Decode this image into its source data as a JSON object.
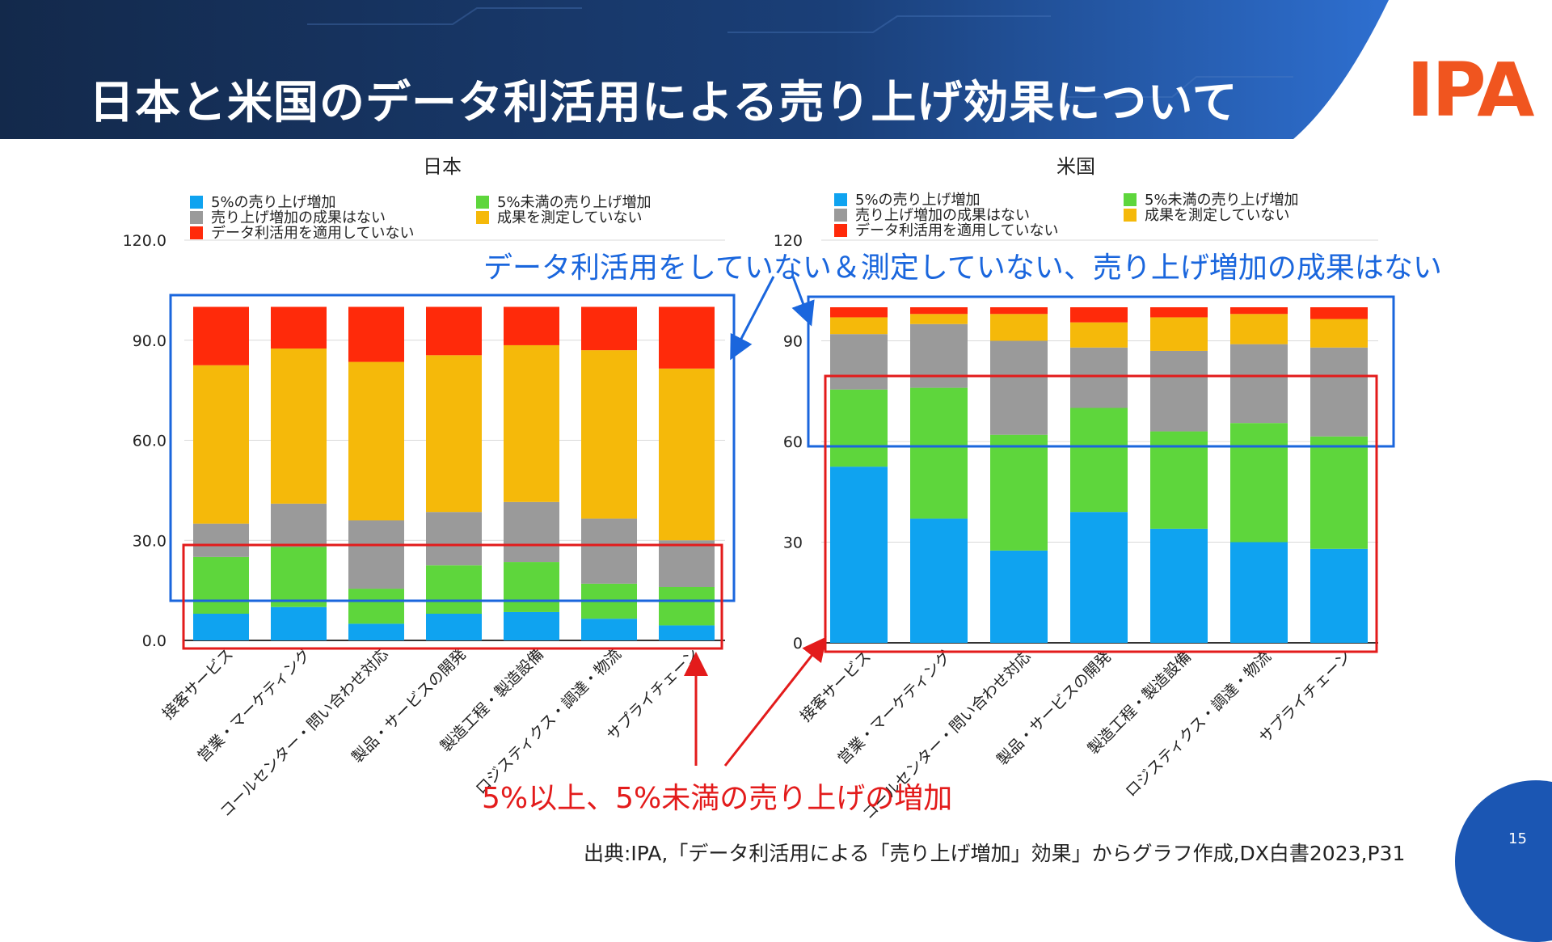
{
  "slide": {
    "title": "日本と米国のデータ利活用による売り上げ効果について",
    "logo": "IPA",
    "page_number": "15",
    "source": "出典:IPA,「データ利活用による「売り上げ増加」効果」からグラフ作成,DX白書2023,P31"
  },
  "annotations": {
    "blue_text": "データ利活用をしていない＆測定していない、売り上げ増加の成果はない",
    "red_text": "5%以上、5%未満の売り上げの増加",
    "blue_color": "#1a66dd",
    "red_color": "#e31b1b"
  },
  "legend": {
    "items": [
      {
        "label": "5%の売り上げ増加",
        "color": "#0fa3f0"
      },
      {
        "label": "5%未満の売り上げ増加",
        "color": "#5ed63c"
      },
      {
        "label": "売り上げ増加の成果はない",
        "color": "#9a9a9a"
      },
      {
        "label": "成果を測定していない",
        "color": "#f5b90a"
      },
      {
        "label": "データ利活用を適用していない",
        "color": "#ff2a0a"
      }
    ]
  },
  "chart_data": [
    {
      "type": "bar",
      "stacked": true,
      "title": "日本",
      "categories": [
        "接客サービス",
        "営業・マーケティング",
        "コールセンター・問い合わせ対応",
        "製品・サービスの開発",
        "製造工程・製造設備",
        "ロジスティクス・調達・物流",
        "サプライチェーン"
      ],
      "ylim": [
        0,
        120
      ],
      "yticks": [
        "0.0",
        "30.0",
        "60.0",
        "90.0",
        "120.0"
      ],
      "series": [
        {
          "name": "5%の売り上げ増加",
          "values": [
            8,
            10,
            5,
            8,
            8.5,
            6.5,
            4.5
          ]
        },
        {
          "name": "5%未満の売り上げ増加",
          "values": [
            17,
            18,
            10.5,
            14.5,
            15,
            10.5,
            11.5
          ]
        },
        {
          "name": "売り上げ増加の成果はない",
          "values": [
            10,
            13,
            20.5,
            16,
            18,
            19.5,
            14
          ]
        },
        {
          "name": "成果を測定していない",
          "values": [
            47.5,
            46.5,
            47.5,
            47,
            47,
            50.5,
            51.5
          ]
        },
        {
          "name": "データ利活用を適用していない",
          "values": [
            17.5,
            12.5,
            16.5,
            14.5,
            11.5,
            13,
            18.5
          ]
        }
      ]
    },
    {
      "type": "bar",
      "stacked": true,
      "title": "米国",
      "categories": [
        "接客サービス",
        "営業・マーケティング",
        "コールセンター・問い合わせ対応",
        "製品・サービスの開発",
        "製造工程・製造設備",
        "ロジスティクス・調達・物流",
        "サプライチェーン"
      ],
      "ylim": [
        0,
        120
      ],
      "yticks": [
        "0",
        "30",
        "60",
        "90",
        "120"
      ],
      "series": [
        {
          "name": "5%の売り上げ増加",
          "values": [
            52.5,
            37,
            27.5,
            39,
            34,
            30,
            28
          ]
        },
        {
          "name": "5%未満の売り上げ増加",
          "values": [
            23,
            39,
            34.5,
            31,
            29,
            35.5,
            33.5
          ]
        },
        {
          "name": "売り上げ増加の成果はない",
          "values": [
            16.5,
            19,
            28,
            18,
            24,
            23.5,
            26.5
          ]
        },
        {
          "name": "成果を測定していない",
          "values": [
            5,
            3,
            8,
            7.5,
            10,
            9,
            8.5
          ]
        },
        {
          "name": "データ利活用を適用していない",
          "values": [
            3,
            2,
            2,
            4.5,
            3,
            2,
            3.5
          ]
        }
      ]
    }
  ]
}
